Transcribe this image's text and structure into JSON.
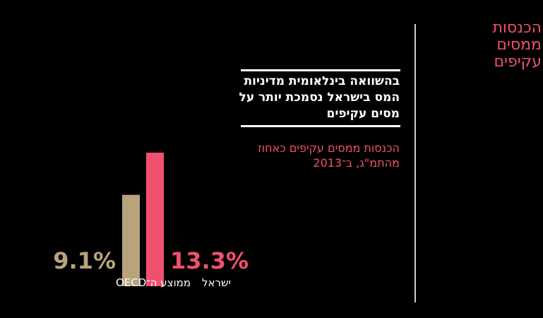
{
  "section_title": "הכנסות ממסים עקיפים",
  "headline": "בהשוואה בינלאומית מדיניות המס בישראל נסמכת יותר על מסים עקיפים",
  "chart_data": {
    "type": "bar",
    "title": "הכנסות ממסים עקיפים כאחוז מהתמ\"ג, ב־2013",
    "categories": [
      "ממוצע ה־OECD",
      "ישראל"
    ],
    "values": [
      9.1,
      13.3
    ],
    "value_labels": [
      "9.1%",
      "13.3%"
    ],
    "colors": [
      "#b8a47c",
      "#f0506e"
    ],
    "unit": "%",
    "ylim": [
      0,
      13.3
    ],
    "grid": false,
    "legend": "none"
  }
}
